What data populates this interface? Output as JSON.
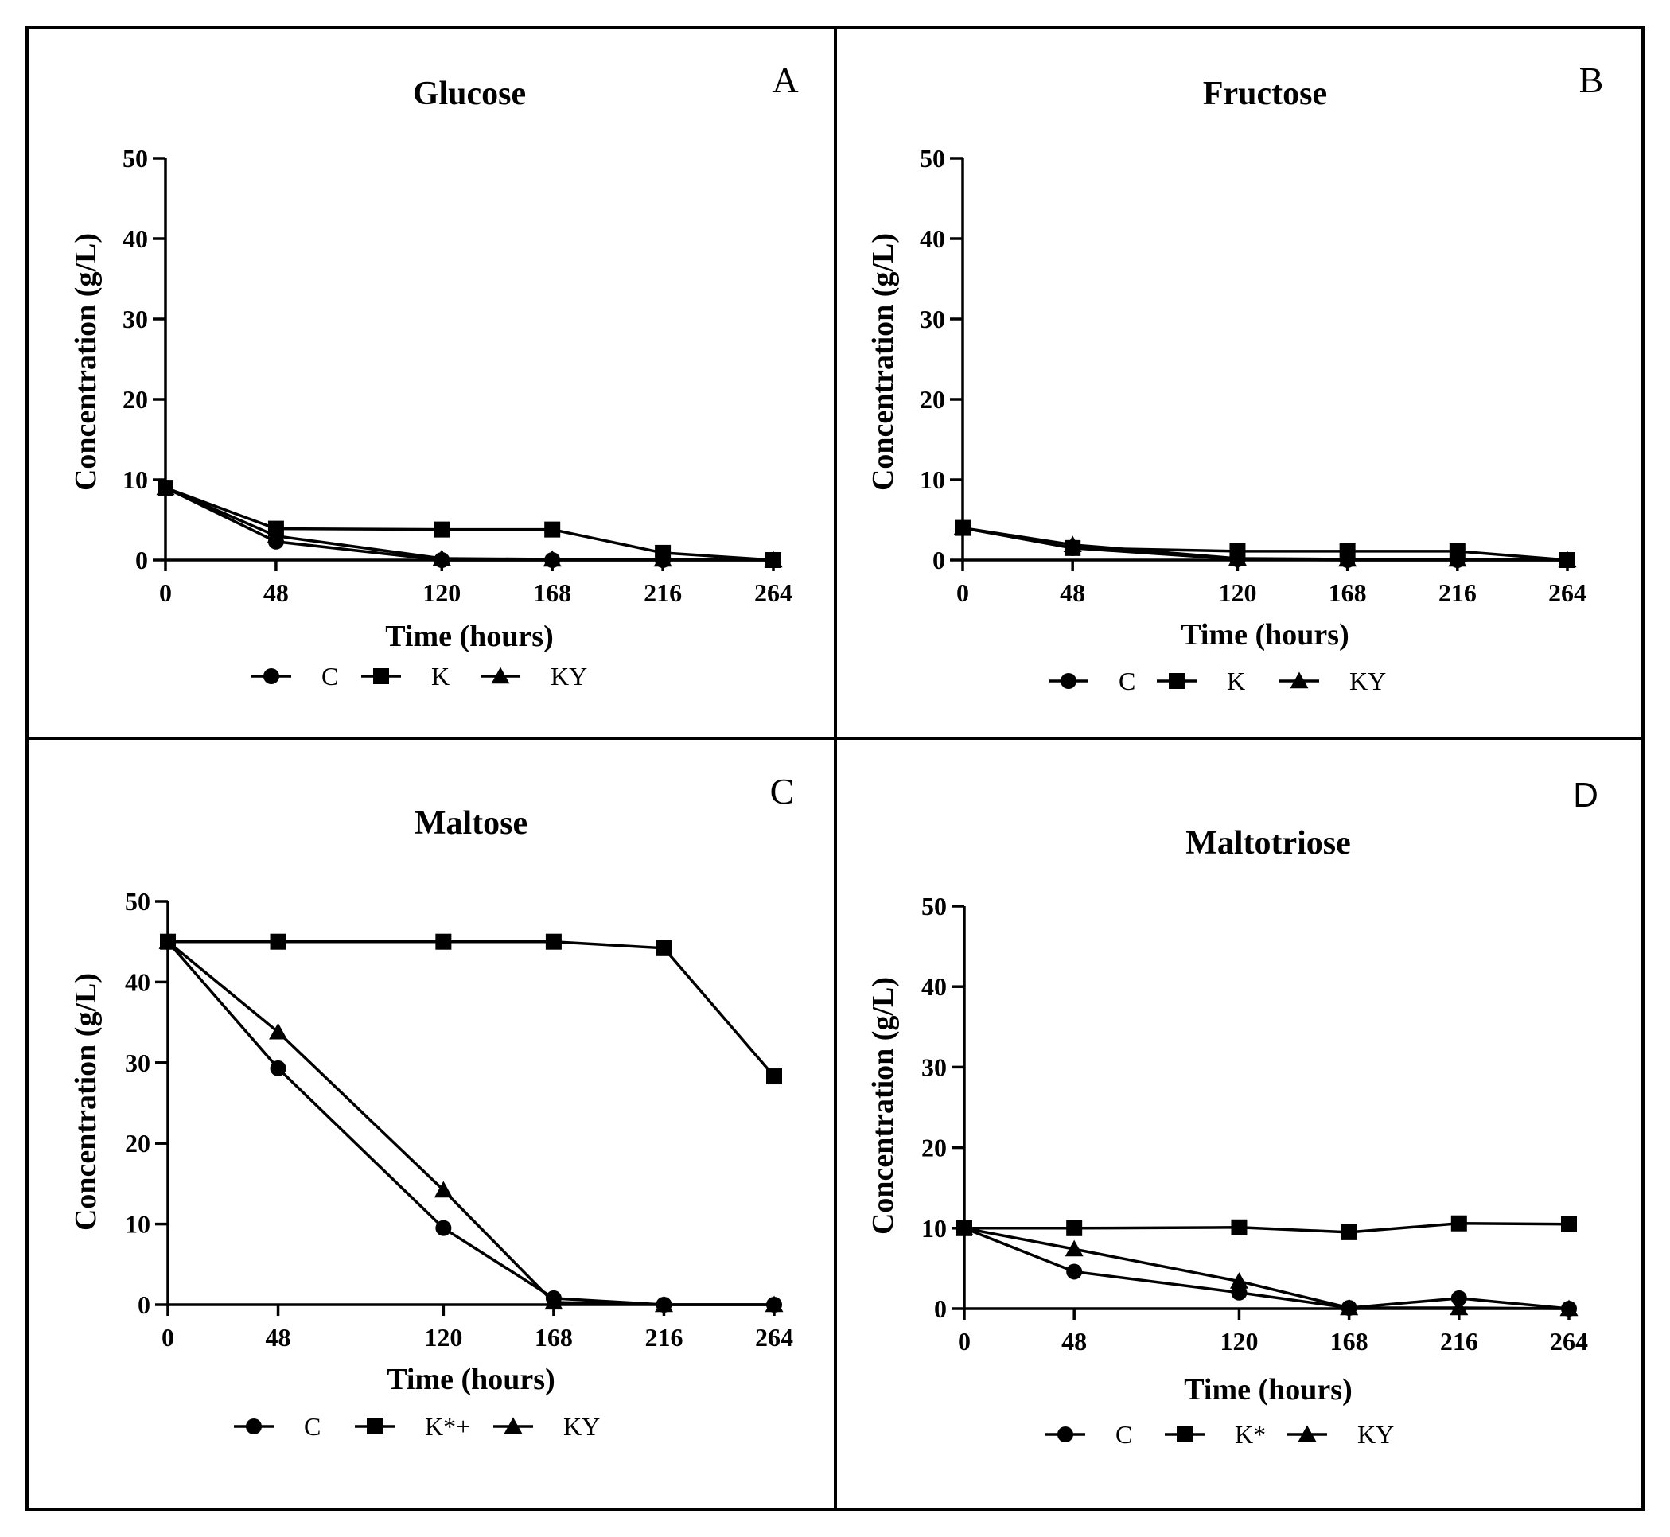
{
  "chart_data": [
    {
      "type": "line",
      "panel": "A",
      "title": "Glucose",
      "xlabel": "Time (hours)",
      "ylabel": "Concentration (g/L)",
      "x": [
        0,
        48,
        120,
        168,
        216,
        264
      ],
      "xticks": [
        "0",
        "48",
        "120",
        "168",
        "216",
        "264"
      ],
      "yticks": [
        "0",
        "10",
        "20",
        "30",
        "40",
        "50"
      ],
      "xlim": [
        0,
        264
      ],
      "ylim": [
        0,
        50
      ],
      "legend": "bottom",
      "series": [
        {
          "name": "C",
          "marker": "circle",
          "values": [
            9,
            2.3,
            0,
            0,
            0,
            0
          ]
        },
        {
          "name": "K",
          "marker": "square",
          "values": [
            9,
            3.9,
            3.8,
            3.8,
            0.9,
            0
          ]
        },
        {
          "name": "KY",
          "marker": "triangle",
          "values": [
            9,
            3.0,
            0.2,
            0.1,
            0.1,
            0
          ]
        }
      ]
    },
    {
      "type": "line",
      "panel": "B",
      "title": "Fructose",
      "xlabel": "Time (hours)",
      "ylabel": "Concentration (g/L)",
      "x": [
        0,
        48,
        120,
        168,
        216,
        264
      ],
      "xticks": [
        "0",
        "48",
        "120",
        "168",
        "216",
        "264"
      ],
      "yticks": [
        "0",
        "10",
        "20",
        "30",
        "40",
        "50"
      ],
      "xlim": [
        0,
        264
      ],
      "ylim": [
        0,
        50
      ],
      "legend": "bottom",
      "series": [
        {
          "name": "C",
          "marker": "circle",
          "values": [
            4,
            1.5,
            0.1,
            0,
            0,
            0
          ]
        },
        {
          "name": "K",
          "marker": "square",
          "values": [
            4,
            1.5,
            1.1,
            1.1,
            1.1,
            0
          ]
        },
        {
          "name": "KY",
          "marker": "triangle",
          "values": [
            4,
            1.9,
            0.2,
            0.1,
            0.1,
            0
          ]
        }
      ]
    },
    {
      "type": "line",
      "panel": "C",
      "title": "Maltose",
      "xlabel": "Time (hours)",
      "ylabel": "Concentration (g/L)",
      "x": [
        0,
        48,
        120,
        168,
        216,
        264
      ],
      "xticks": [
        "0",
        "48",
        "120",
        "168",
        "216",
        "264"
      ],
      "yticks": [
        "0",
        "10",
        "20",
        "30",
        "40",
        "50"
      ],
      "xlim": [
        0,
        264
      ],
      "ylim": [
        0,
        50
      ],
      "legend": "bottom",
      "series": [
        {
          "name": "C",
          "marker": "circle",
          "values": [
            45,
            29.3,
            9.5,
            0.8,
            0,
            0
          ]
        },
        {
          "name": "K*+",
          "marker": "square",
          "values": [
            45,
            45,
            45,
            45,
            44.2,
            28.3
          ]
        },
        {
          "name": "KY",
          "marker": "triangle",
          "values": [
            45,
            33.8,
            14.2,
            0.3,
            0,
            0
          ]
        }
      ]
    },
    {
      "type": "line",
      "panel": "D",
      "title": "Maltotriose",
      "xlabel": "Time (hours)",
      "ylabel": "Concentration (g/L)",
      "x": [
        0,
        48,
        120,
        168,
        216,
        264
      ],
      "xticks": [
        "0",
        "48",
        "120",
        "168",
        "216",
        "264"
      ],
      "yticks": [
        "0",
        "10",
        "20",
        "30",
        "40",
        "50"
      ],
      "xlim": [
        0,
        264
      ],
      "ylim": [
        0,
        50
      ],
      "legend": "bottom",
      "series": [
        {
          "name": "C",
          "marker": "circle",
          "values": [
            10,
            4.6,
            2.0,
            0.1,
            1.3,
            0
          ]
        },
        {
          "name": "K*",
          "marker": "square",
          "values": [
            10,
            10,
            10.1,
            9.5,
            10.6,
            10.5
          ]
        },
        {
          "name": "KY",
          "marker": "triangle",
          "values": [
            10,
            7.4,
            3.4,
            0.1,
            0.1,
            0
          ]
        }
      ]
    }
  ]
}
